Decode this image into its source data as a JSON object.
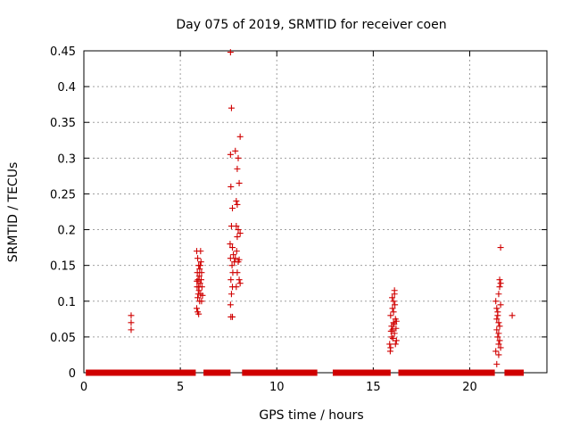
{
  "chart_data": {
    "type": "scatter",
    "title": "Day 075 of 2019, SRMTID for receiver coen",
    "xlabel": "GPS time / hours",
    "ylabel": "SRMTID / TECUs",
    "xlim": [
      0,
      24
    ],
    "ylim": [
      0,
      0.45
    ],
    "grid": true,
    "marker": "+",
    "color": "#d00000",
    "xticks": [
      0,
      5,
      10,
      15,
      20
    ],
    "yticks": [
      0,
      0.05,
      0.1,
      0.15,
      0.2,
      0.25,
      0.3,
      0.35,
      0.4,
      0.45
    ],
    "ytick_labels": [
      "0",
      "0.05",
      "0.1",
      "0.15",
      "0.2",
      "0.25",
      "0.3",
      "0.35",
      "0.4",
      "0.45"
    ],
    "zero_segments": [
      [
        0.1,
        5.8
      ],
      [
        6.2,
        7.6
      ],
      [
        8.2,
        12.1
      ],
      [
        12.9,
        15.9
      ],
      [
        16.3,
        21.3
      ],
      [
        21.8,
        22.8
      ]
    ],
    "points": [
      [
        2.45,
        0.08
      ],
      [
        2.45,
        0.07
      ],
      [
        2.45,
        0.06
      ],
      [
        5.85,
        0.17
      ],
      [
        5.9,
        0.16
      ],
      [
        5.95,
        0.15
      ],
      [
        5.88,
        0.14
      ],
      [
        6.0,
        0.145
      ],
      [
        5.92,
        0.13
      ],
      [
        6.02,
        0.125
      ],
      [
        5.87,
        0.12
      ],
      [
        5.97,
        0.115
      ],
      [
        6.05,
        0.11
      ],
      [
        5.9,
        0.105
      ],
      [
        6.0,
        0.1
      ],
      [
        5.85,
        0.09
      ],
      [
        5.9,
        0.085
      ],
      [
        6.1,
        0.14
      ],
      [
        6.08,
        0.13
      ],
      [
        5.95,
        0.12
      ],
      [
        6.03,
        0.15
      ],
      [
        6.12,
        0.12
      ],
      [
        5.93,
        0.11
      ],
      [
        6.1,
        0.1
      ],
      [
        5.98,
        0.135
      ],
      [
        6.07,
        0.155
      ],
      [
        5.86,
        0.128
      ],
      [
        6.15,
        0.108
      ],
      [
        5.95,
        0.082
      ],
      [
        6.05,
        0.17
      ],
      [
        7.6,
        0.448
      ],
      [
        7.65,
        0.37
      ],
      [
        7.6,
        0.305
      ],
      [
        7.62,
        0.26
      ],
      [
        7.7,
        0.23
      ],
      [
        7.65,
        0.205
      ],
      [
        7.58,
        0.18
      ],
      [
        7.7,
        0.175
      ],
      [
        7.6,
        0.16
      ],
      [
        7.68,
        0.15
      ],
      [
        7.72,
        0.14
      ],
      [
        7.62,
        0.13
      ],
      [
        7.7,
        0.12
      ],
      [
        7.65,
        0.11
      ],
      [
        7.75,
        0.165
      ],
      [
        7.6,
        0.095
      ],
      [
        7.62,
        0.078
      ],
      [
        7.7,
        0.078
      ],
      [
        7.85,
        0.31
      ],
      [
        8.0,
        0.3
      ],
      [
        7.95,
        0.285
      ],
      [
        8.05,
        0.265
      ],
      [
        8.1,
        0.33
      ],
      [
        7.9,
        0.24
      ],
      [
        7.95,
        0.235
      ],
      [
        7.9,
        0.205
      ],
      [
        8.0,
        0.2
      ],
      [
        8.1,
        0.195
      ],
      [
        7.95,
        0.19
      ],
      [
        7.92,
        0.17
      ],
      [
        7.85,
        0.16
      ],
      [
        8.0,
        0.155
      ],
      [
        8.05,
        0.158
      ],
      [
        7.95,
        0.14
      ],
      [
        8.05,
        0.13
      ],
      [
        7.9,
        0.12
      ],
      [
        8.1,
        0.125
      ],
      [
        7.8,
        0.155
      ],
      [
        15.85,
        0.04
      ],
      [
        15.9,
        0.035
      ],
      [
        15.95,
        0.05
      ],
      [
        16.0,
        0.06
      ],
      [
        16.05,
        0.07
      ],
      [
        15.9,
        0.08
      ],
      [
        16.0,
        0.09
      ],
      [
        16.05,
        0.1
      ],
      [
        16.1,
        0.11
      ],
      [
        15.95,
        0.065
      ],
      [
        16.1,
        0.055
      ],
      [
        16.2,
        0.045
      ],
      [
        16.15,
        0.075
      ],
      [
        15.88,
        0.03
      ],
      [
        16.05,
        0.085
      ],
      [
        16.12,
        0.095
      ],
      [
        15.98,
        0.105
      ],
      [
        16.18,
        0.062
      ],
      [
        16.08,
        0.068
      ],
      [
        15.92,
        0.058
      ],
      [
        16.2,
        0.072
      ],
      [
        16.02,
        0.048
      ],
      [
        16.15,
        0.04
      ],
      [
        16.1,
        0.115
      ],
      [
        21.35,
        0.1
      ],
      [
        21.4,
        0.09
      ],
      [
        21.45,
        0.08
      ],
      [
        21.5,
        0.07
      ],
      [
        21.55,
        0.13
      ],
      [
        21.6,
        0.125
      ],
      [
        21.5,
        0.11
      ],
      [
        21.55,
        0.12
      ],
      [
        21.6,
        0.175
      ],
      [
        21.4,
        0.06
      ],
      [
        21.45,
        0.05
      ],
      [
        21.5,
        0.04
      ],
      [
        21.35,
        0.03
      ],
      [
        21.4,
        0.012
      ],
      [
        21.5,
        0.025
      ],
      [
        21.55,
        0.065
      ],
      [
        21.45,
        0.085
      ],
      [
        21.6,
        0.095
      ],
      [
        21.5,
        0.055
      ],
      [
        21.4,
        0.075
      ],
      [
        21.55,
        0.045
      ],
      [
        21.6,
        0.035
      ],
      [
        22.2,
        0.08
      ]
    ]
  }
}
